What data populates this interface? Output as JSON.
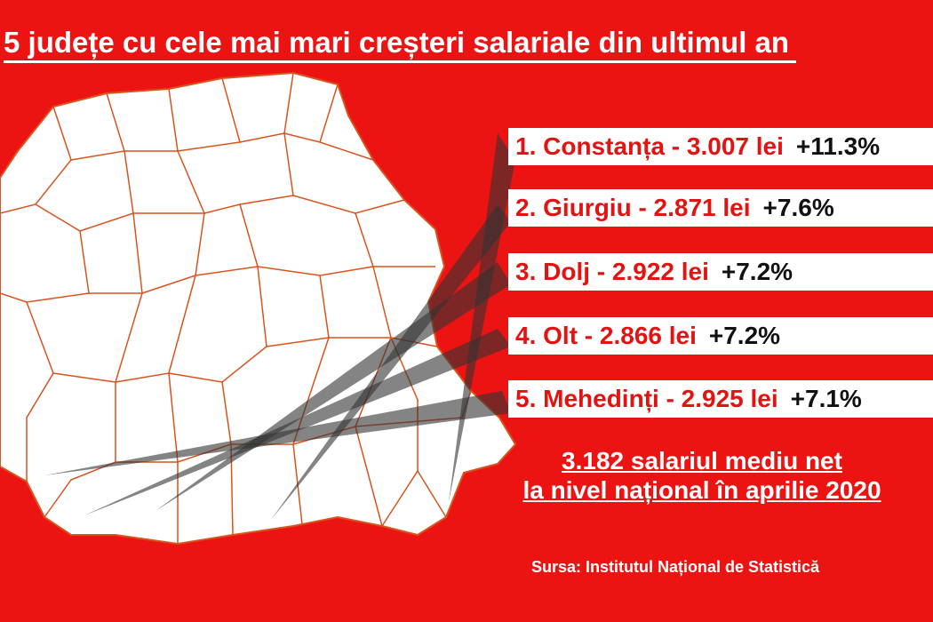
{
  "title": "5 județe cu cele mai mari creșteri salariale din ultimul an",
  "items": [
    {
      "label": "1. Constanța - 3.007 lei",
      "change": "+11.3%"
    },
    {
      "label": "2. Giurgiu - 2.871 lei",
      "change": "+7.6%"
    },
    {
      "label": "3. Dolj - 2.922 lei",
      "change": "+7.2%"
    },
    {
      "label": "4. Olt - 2.866 lei",
      "change": "+7.2%"
    },
    {
      "label": "5. Mehedinți - 2.925 lei",
      "change": "+7.1%"
    }
  ],
  "note": [
    "3.182 salariul mediu net",
    "la nivel național în aprilie 2020"
  ],
  "source": "Sursa: Institutul Național de Statistică"
}
